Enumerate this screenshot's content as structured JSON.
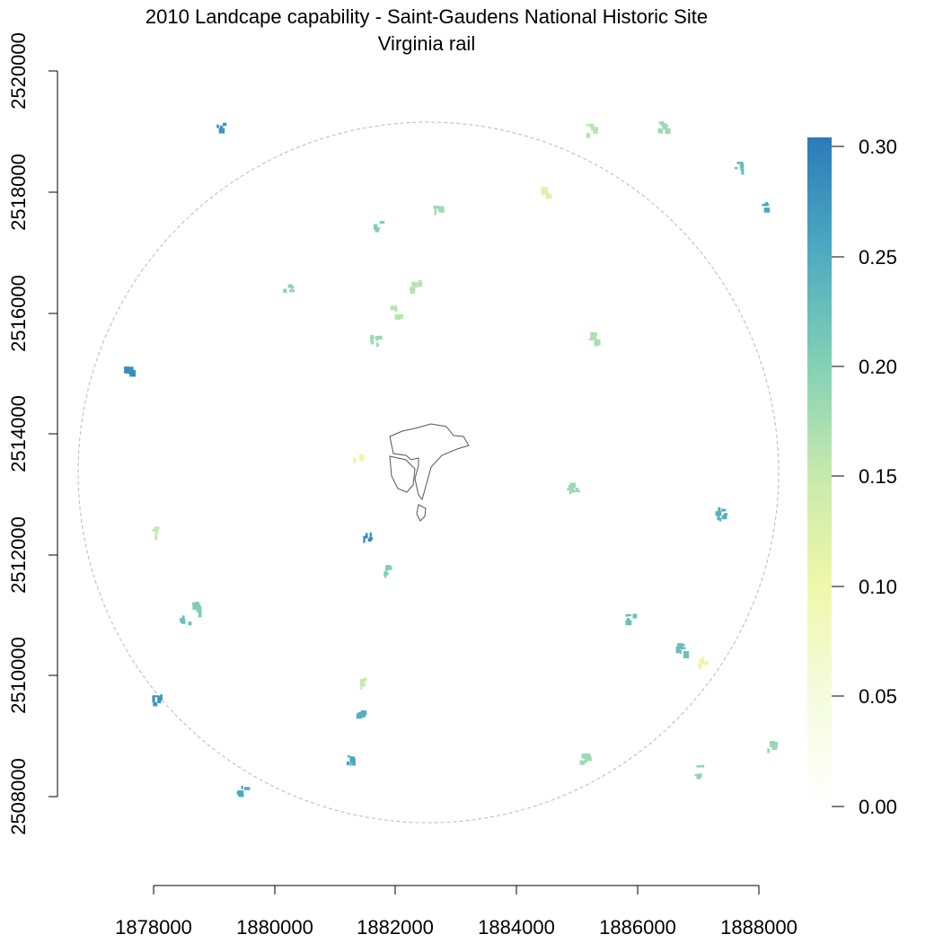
{
  "title": "2010 Landcape capability - Saint-Gaudens National Historic Site",
  "subtitle": "Virginia rail",
  "x_axis": {
    "ticks": [
      "1878000",
      "1880000",
      "1882000",
      "1884000",
      "1886000",
      "1888000"
    ],
    "range": [
      1878000,
      1888000
    ]
  },
  "y_axis": {
    "ticks": [
      "2508000",
      "2510000",
      "2512000",
      "2514000",
      "2516000",
      "2518000",
      "2520000"
    ],
    "range": [
      2508000,
      2520000
    ]
  },
  "legend": {
    "ticks": [
      "0.00",
      "0.05",
      "0.10",
      "0.15",
      "0.20",
      "0.25",
      "0.30"
    ],
    "range": [
      0,
      0.3
    ],
    "colors": [
      "#ffffff",
      "#f5fbdd",
      "#eef7a8",
      "#c6e9ad",
      "#7fcfb6",
      "#4aa8c0",
      "#2b7bb9"
    ],
    "placement": "right"
  },
  "patches": [
    {
      "x": 1881500,
      "y": 2512300,
      "v": 0.28
    },
    {
      "x": 1881850,
      "y": 2511800,
      "v": 0.2
    },
    {
      "x": 1877550,
      "y": 2515100,
      "v": 0.28
    },
    {
      "x": 1878050,
      "y": 2509650,
      "v": 0.27
    },
    {
      "x": 1879450,
      "y": 2508100,
      "v": 0.25
    },
    {
      "x": 1881250,
      "y": 2508650,
      "v": 0.25
    },
    {
      "x": 1881350,
      "y": 2509450,
      "v": 0.24
    },
    {
      "x": 1887350,
      "y": 2512700,
      "v": 0.24
    },
    {
      "x": 1888100,
      "y": 2517800,
      "v": 0.25
    },
    {
      "x": 1887650,
      "y": 2518450,
      "v": 0.22
    },
    {
      "x": 1878000,
      "y": 2512400,
      "v": 0.15
    },
    {
      "x": 1878700,
      "y": 2511150,
      "v": 0.2
    },
    {
      "x": 1878500,
      "y": 2510950,
      "v": 0.22
    },
    {
      "x": 1886700,
      "y": 2510450,
      "v": 0.22
    },
    {
      "x": 1885850,
      "y": 2510950,
      "v": 0.22
    },
    {
      "x": 1879100,
      "y": 2519100,
      "v": 0.27
    },
    {
      "x": 1881700,
      "y": 2517450,
      "v": 0.2
    },
    {
      "x": 1882650,
      "y": 2517750,
      "v": 0.18
    },
    {
      "x": 1880200,
      "y": 2516400,
      "v": 0.19
    },
    {
      "x": 1881650,
      "y": 2515550,
      "v": 0.18
    },
    {
      "x": 1884450,
      "y": 2518050,
      "v": 0.12
    },
    {
      "x": 1886400,
      "y": 2519100,
      "v": 0.18
    },
    {
      "x": 1885200,
      "y": 2519050,
      "v": 0.16
    },
    {
      "x": 1885250,
      "y": 2515600,
      "v": 0.17
    },
    {
      "x": 1887050,
      "y": 2510250,
      "v": 0.1
    },
    {
      "x": 1886980,
      "y": 2508450,
      "v": 0.19
    },
    {
      "x": 1888150,
      "y": 2508850,
      "v": 0.18
    },
    {
      "x": 1885100,
      "y": 2508650,
      "v": 0.18
    },
    {
      "x": 1884900,
      "y": 2513150,
      "v": 0.18
    },
    {
      "x": 1881450,
      "y": 2509900,
      "v": 0.15
    },
    {
      "x": 1881950,
      "y": 2516050,
      "v": 0.16
    },
    {
      "x": 1882300,
      "y": 2516450,
      "v": 0.16
    },
    {
      "x": 1881350,
      "y": 2513650,
      "v": 0.1
    }
  ]
}
